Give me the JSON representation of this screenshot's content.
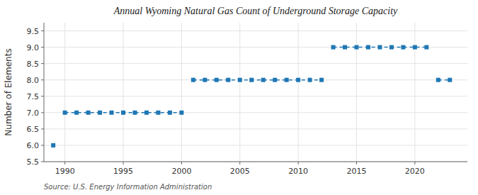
{
  "chart_data": {
    "type": "line",
    "title": "Annual Wyoming Natural Gas Count of Underground Storage Capacity",
    "ylabel": "Number of Elements",
    "source": "Source: U.S. Energy Information Administration",
    "x": [
      1989,
      1990,
      1991,
      1992,
      1993,
      1994,
      1995,
      1996,
      1997,
      1998,
      1999,
      2000,
      2001,
      2002,
      2003,
      2004,
      2005,
      2006,
      2007,
      2008,
      2009,
      2010,
      2011,
      2012,
      2013,
      2014,
      2015,
      2016,
      2017,
      2018,
      2019,
      2020,
      2021,
      2022,
      2023
    ],
    "values": [
      6,
      7,
      7,
      7,
      7,
      7,
      7,
      7,
      7,
      7,
      7,
      7,
      8,
      8,
      8,
      8,
      8,
      8,
      8,
      8,
      8,
      8,
      8,
      8,
      9,
      9,
      9,
      9,
      9,
      9,
      9,
      9,
      9,
      8,
      8
    ],
    "marker": "square",
    "line_style": "dashed",
    "xlim": [
      1988.2,
      2024.5
    ],
    "xticks": [
      1990,
      1995,
      2000,
      2005,
      2010,
      2015,
      2020
    ],
    "ylim": [
      5.5,
      9.75
    ],
    "yticks": [
      5.5,
      {
        "value": 6.0,
        "label": "6.0"
      },
      6.5,
      {
        "value": 7.0,
        "label": "7.0"
      },
      7.5,
      {
        "value": 8.0,
        "label": "8.0"
      },
      8.5,
      {
        "value": 9.0,
        "label": "9.0"
      },
      9.5
    ],
    "grid": true
  }
}
